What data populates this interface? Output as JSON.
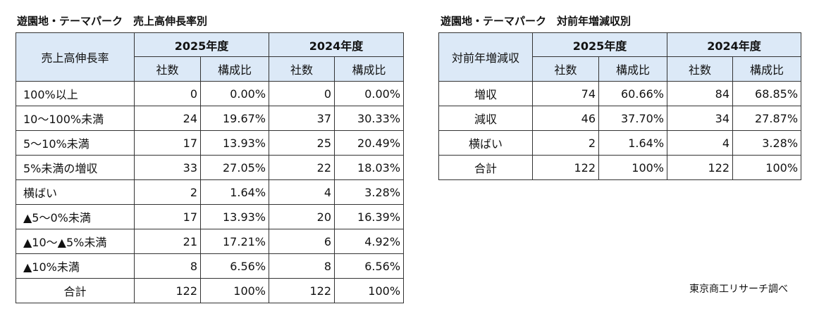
{
  "table1": {
    "title": "遊園地・テーマパーク　売上高伸長率別",
    "row_header": "売上高伸長率",
    "years": [
      "2025年度",
      "2024年度"
    ],
    "sub_headers": [
      "社数",
      "構成比",
      "社数",
      "構成比"
    ],
    "rows": [
      {
        "label": "100%以上",
        "c1": "0",
        "p1": "0.00%",
        "c2": "0",
        "p2": "0.00%"
      },
      {
        "label": "10～100%未満",
        "c1": "24",
        "p1": "19.67%",
        "c2": "37",
        "p2": "30.33%"
      },
      {
        "label": "5～10%未満",
        "c1": "17",
        "p1": "13.93%",
        "c2": "25",
        "p2": "20.49%"
      },
      {
        "label": "5%未満の増収",
        "c1": "33",
        "p1": "27.05%",
        "c2": "22",
        "p2": "18.03%"
      },
      {
        "label": "横ばい",
        "c1": "2",
        "p1": "1.64%",
        "c2": "4",
        "p2": "3.28%"
      },
      {
        "label": "▲5～0%未満",
        "c1": "17",
        "p1": "13.93%",
        "c2": "20",
        "p2": "16.39%"
      },
      {
        "label": "▲10～▲5%未満",
        "c1": "21",
        "p1": "17.21%",
        "c2": "6",
        "p2": "4.92%"
      },
      {
        "label": "▲10%未満",
        "c1": "8",
        "p1": "6.56%",
        "c2": "8",
        "p2": "6.56%"
      },
      {
        "label": "合計",
        "c1": "122",
        "p1": "100%",
        "c2": "122",
        "p2": "100%"
      }
    ]
  },
  "table2": {
    "title": "遊園地・テーマパーク　対前年増減収別",
    "row_header": "対前年増減収",
    "years": [
      "2025年度",
      "2024年度"
    ],
    "sub_headers": [
      "社数",
      "構成比",
      "社数",
      "構成比"
    ],
    "rows": [
      {
        "label": "増収",
        "c1": "74",
        "p1": "60.66%",
        "c2": "84",
        "p2": "68.85%"
      },
      {
        "label": "減収",
        "c1": "46",
        "p1": "37.70%",
        "c2": "34",
        "p2": "27.87%"
      },
      {
        "label": "横ばい",
        "c1": "2",
        "p1": "1.64%",
        "c2": "4",
        "p2": "3.28%"
      },
      {
        "label": "合計",
        "c1": "122",
        "p1": "100%",
        "c2": "122",
        "p2": "100%"
      }
    ]
  },
  "source_note": "東京商工リサーチ調べ",
  "colors": {
    "header_bg": "#dce9f7",
    "border": "#333333"
  }
}
